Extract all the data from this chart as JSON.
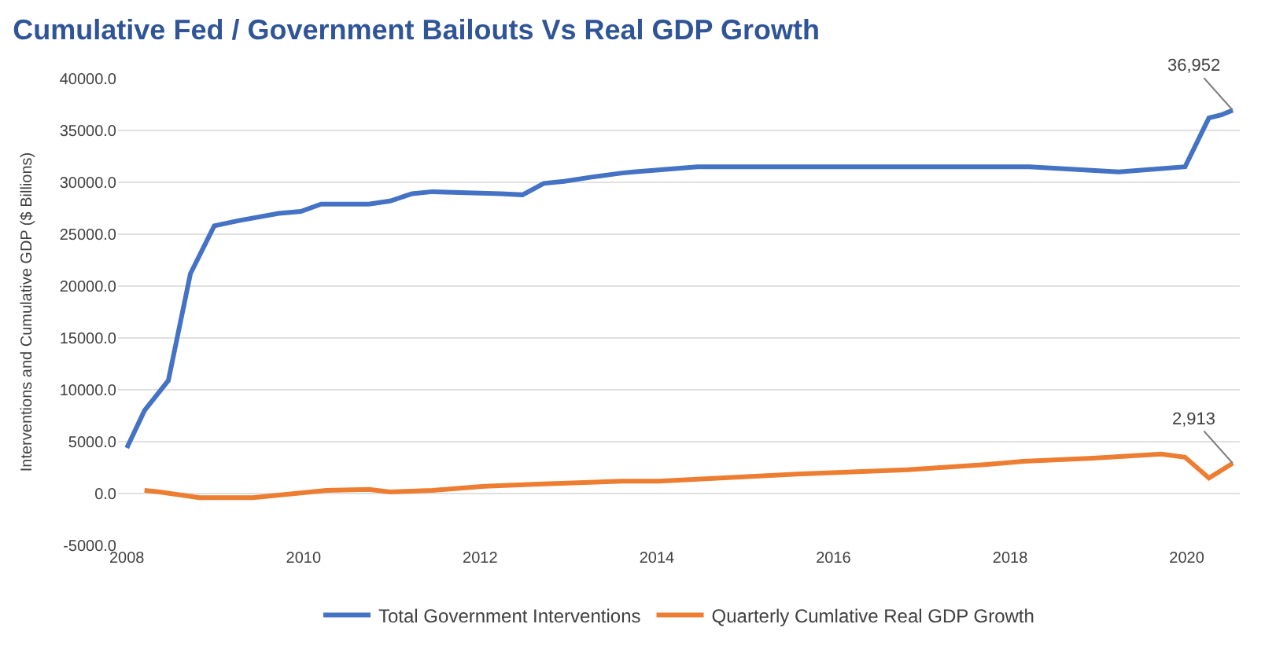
{
  "chart_data": {
    "type": "line",
    "title": "Cumulative Fed / Government Bailouts Vs Real GDP Growth",
    "ylabel": "Interventions and Cumulative GDP ($ Billions)",
    "series": [
      {
        "name": "Total Government Interventions",
        "color": "#4472c4",
        "x": [
          2008.0,
          2008.2,
          2008.47,
          2008.72,
          2008.99,
          2009.26,
          2009.72,
          2009.97,
          2010.2,
          2010.74,
          2010.98,
          2011.23,
          2011.46,
          2012.23,
          2012.48,
          2012.72,
          2012.95,
          2013.26,
          2013.61,
          2013.74,
          2014.46,
          2018.22,
          2019.23,
          2019.98,
          2020.25,
          2020.39,
          2020.52
        ],
        "values": [
          4400,
          8000,
          10900,
          21200,
          25800,
          26300,
          27000,
          27200,
          27900,
          27900,
          28200,
          28900,
          29100,
          28900,
          28800,
          29900,
          30100,
          30500,
          30900,
          31000,
          31500,
          31500,
          31000,
          31500,
          36200,
          36500,
          36952
        ]
      },
      {
        "name": "Quarterly Cumlative Real GDP Growth",
        "color": "#ed7d31",
        "x": [
          2008.2,
          2008.37,
          2008.82,
          2009.43,
          2010.26,
          2010.74,
          2010.98,
          2011.46,
          2012.05,
          2012.66,
          2013.61,
          2014.03,
          2015.64,
          2016.84,
          2017.74,
          2018.15,
          2018.94,
          2019.71,
          2019.98,
          2020.25,
          2020.52
        ],
        "values": [
          300,
          150,
          -400,
          -400,
          300,
          400,
          150,
          300,
          700,
          900,
          1200,
          1200,
          1900,
          2300,
          2800,
          3100,
          3400,
          3800,
          3500,
          1500,
          2913
        ]
      }
    ],
    "annotations": [
      {
        "text": "36,952",
        "x": 2020.52,
        "y": 36952
      },
      {
        "text": "2,913",
        "x": 2020.52,
        "y": 2913
      }
    ],
    "xlim": [
      2007.9,
      2020.6
    ],
    "xticks": [
      2008,
      2010,
      2012,
      2014,
      2016,
      2018,
      2020
    ],
    "ylim": [
      -5000,
      40000
    ],
    "yticks": [
      {
        "value": -5000,
        "label": "-5000.0"
      },
      {
        "value": 0,
        "label": "0.0"
      },
      {
        "value": 5000,
        "label": "5000.0"
      },
      {
        "value": 10000,
        "label": "10000.0"
      },
      {
        "value": 15000,
        "label": "15000.0"
      },
      {
        "value": 20000,
        "label": "20000.0"
      },
      {
        "value": 25000,
        "label": "25000.0"
      },
      {
        "value": 30000,
        "label": "30000.0"
      },
      {
        "value": 35000,
        "label": "35000.0"
      },
      {
        "value": 40000,
        "label": "40000.0"
      }
    ],
    "grid": "y",
    "legend": "bottom",
    "marker": "none",
    "line_style": "solid"
  }
}
